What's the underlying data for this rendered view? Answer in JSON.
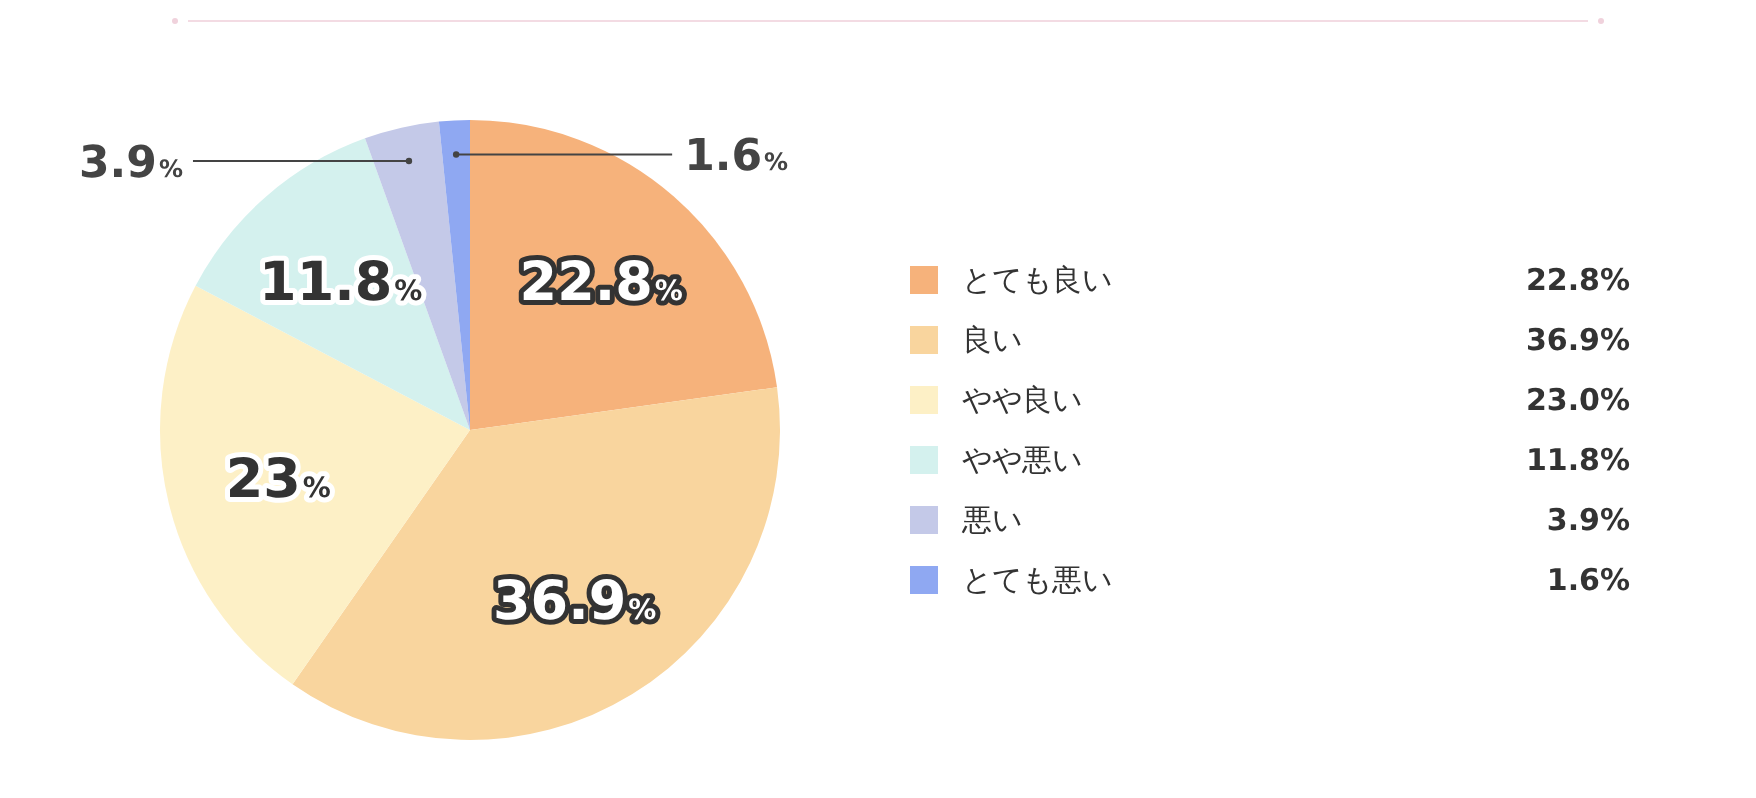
{
  "chart_data": {
    "type": "pie",
    "categories": [
      "とても良い",
      "良い",
      "やや良い",
      "やや悪い",
      "悪い",
      "とても悪い"
    ],
    "values": [
      22.8,
      36.9,
      23,
      11.8,
      3.9,
      1.6
    ],
    "colors": [
      "#f6b27b",
      "#f9d59e",
      "#fdf0c6",
      "#d4f1ee",
      "#c4c9e8",
      "#8fa8f2"
    ],
    "value_labels": [
      "22.8%",
      "36.9%",
      "23%",
      "11.8%",
      "3.9%",
      "1.6%"
    ],
    "legend": "right",
    "annotations": [
      "22.8%",
      "36.9%",
      "23.0%",
      "11.8%",
      "3.9%",
      "1.6%"
    ]
  }
}
